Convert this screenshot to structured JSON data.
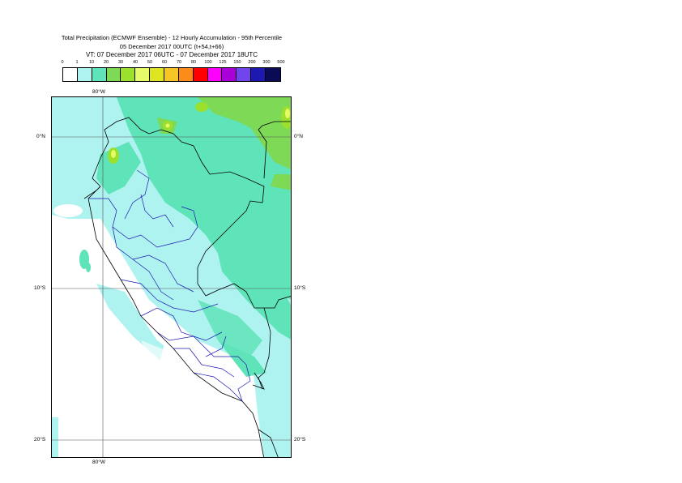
{
  "title": {
    "line1": "Total Precipitation (ECMWF Ensemble) - 12 Hourly Accumulation - 95th Percentile",
    "line2": "05 December 2017 00UTC (t+54,t+66)",
    "line3": "VT: 07 December 2017 06UTC - 07 December 2017 18UTC"
  },
  "legend": {
    "ticks": [
      "0",
      "1",
      "10",
      "20",
      "30",
      "40",
      "50",
      "60",
      "70",
      "80",
      "100",
      "125",
      "150",
      "200",
      "300",
      "500"
    ],
    "colors": [
      "#ffffff",
      "#aef3f0",
      "#5fe3b9",
      "#7ed957",
      "#9be02c",
      "#e7fa6a",
      "#dee520",
      "#f6c627",
      "#fb8b1b",
      "#fe0000",
      "#ff00ff",
      "#a900d9",
      "#7045ee",
      "#1c18b0",
      "#0b0b55"
    ]
  },
  "axes": {
    "lon_top": "80°W",
    "lon_bottom": "80°W",
    "lat_left": [
      "0°N",
      "10°S",
      "20°S"
    ],
    "lat_right": [
      "0°N",
      "10°S",
      "20°S"
    ]
  }
}
